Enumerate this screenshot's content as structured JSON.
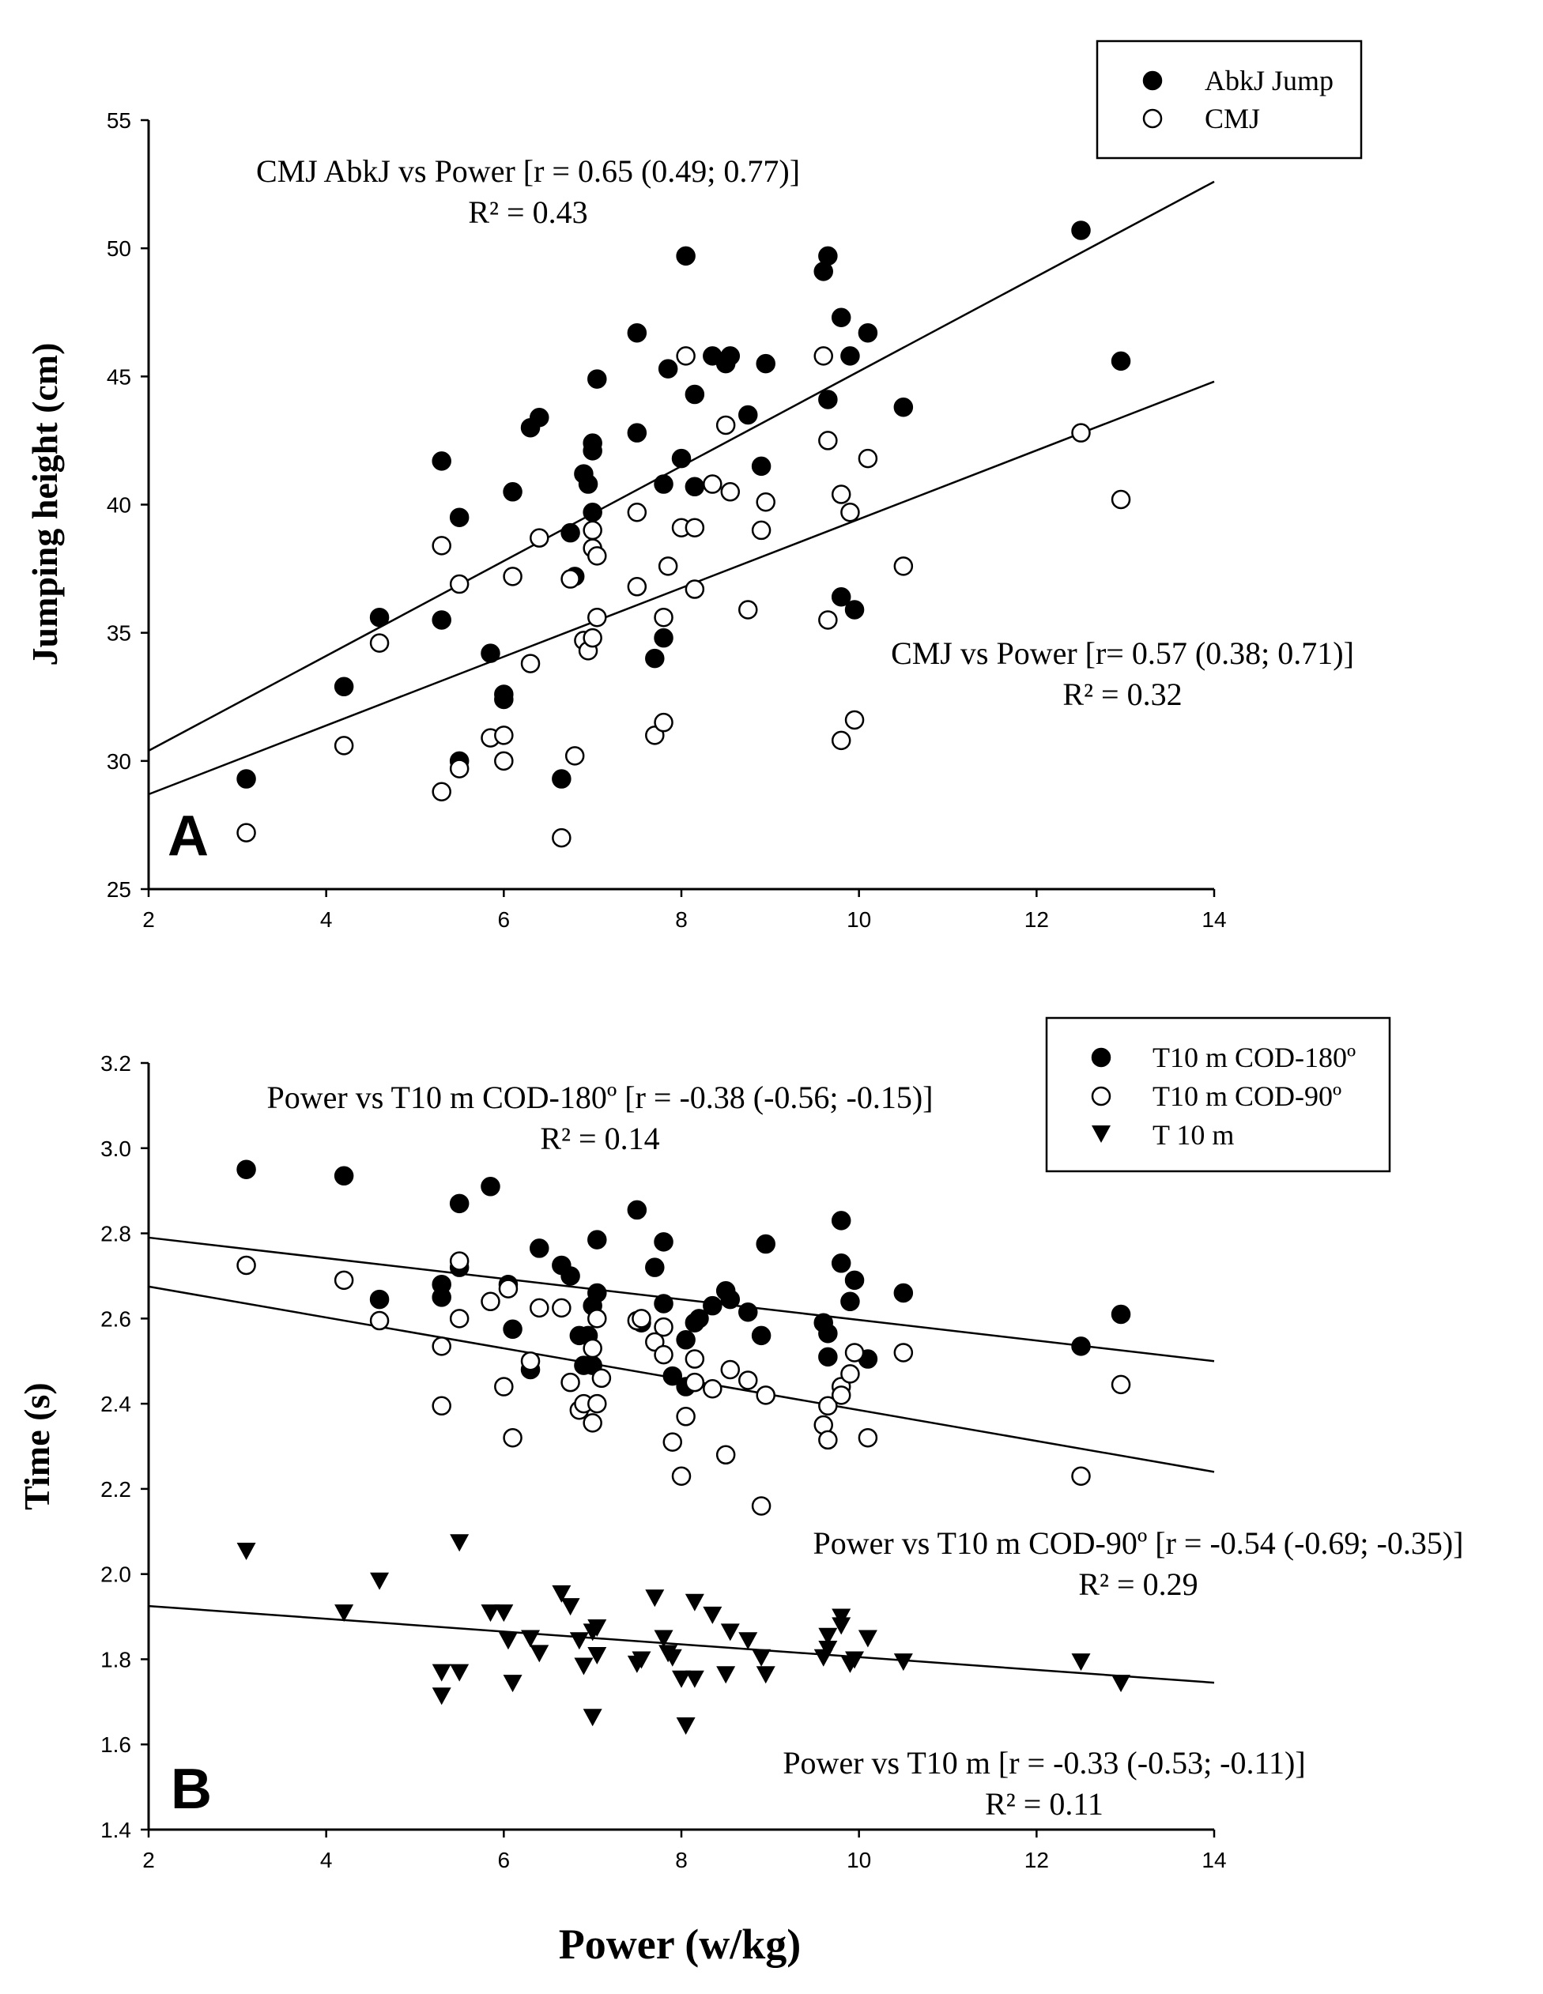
{
  "chart_data": [
    {
      "panel": "A",
      "type": "scatter",
      "xlabel": "Power (w/kg)",
      "ylabel": "Jumping height (cm)",
      "xlim": [
        2,
        14
      ],
      "ylim": [
        25,
        55
      ],
      "xticks": [
        "2",
        "4",
        "6",
        "8",
        "10",
        "12",
        "14"
      ],
      "yticks": [
        "25",
        "30",
        "35",
        "40",
        "45",
        "50",
        "55"
      ],
      "legend": [
        "AbkJ Jump",
        "CMJ"
      ],
      "annotations": [
        {
          "line1": "CMJ AbkJ vs Power [r = 0.65 (0.49; 0.77)]",
          "line2": "R² = 0.43"
        },
        {
          "line1": "CMJ vs Power [r= 0.57 (0.38; 0.71)]",
          "line2": "R² = 0.32"
        }
      ],
      "series": [
        {
          "name": "AbkJ Jump",
          "marker": "filled-circle",
          "fit": {
            "x": [
              2,
              14
            ],
            "y": [
              30.4,
              52.6
            ]
          },
          "points": [
            [
              3.1,
              29.3
            ],
            [
              4.2,
              32.9
            ],
            [
              4.6,
              35.6
            ],
            [
              5.3,
              41.7
            ],
            [
              5.3,
              35.5
            ],
            [
              5.5,
              39.5
            ],
            [
              5.5,
              30.0
            ],
            [
              5.85,
              34.2
            ],
            [
              6.0,
              32.6
            ],
            [
              6.0,
              32.4
            ],
            [
              6.1,
              40.5
            ],
            [
              6.3,
              43.0
            ],
            [
              6.4,
              43.4
            ],
            [
              6.65,
              29.3
            ],
            [
              6.75,
              38.9
            ],
            [
              6.8,
              37.2
            ],
            [
              6.9,
              41.2
            ],
            [
              6.95,
              40.8
            ],
            [
              7.0,
              42.4
            ],
            [
              7.0,
              42.1
            ],
            [
              7.0,
              39.7
            ],
            [
              7.05,
              44.9
            ],
            [
              7.5,
              46.7
            ],
            [
              7.5,
              42.8
            ],
            [
              7.7,
              34.0
            ],
            [
              7.8,
              40.8
            ],
            [
              7.8,
              34.8
            ],
            [
              7.85,
              45.3
            ],
            [
              8.0,
              41.8
            ],
            [
              8.05,
              49.7
            ],
            [
              8.15,
              44.3
            ],
            [
              8.15,
              40.7
            ],
            [
              8.35,
              45.8
            ],
            [
              8.5,
              45.5
            ],
            [
              8.55,
              45.8
            ],
            [
              8.75,
              43.5
            ],
            [
              8.9,
              41.5
            ],
            [
              8.95,
              45.5
            ],
            [
              9.6,
              49.1
            ],
            [
              9.65,
              49.7
            ],
            [
              9.65,
              44.1
            ],
            [
              9.8,
              47.3
            ],
            [
              9.8,
              36.4
            ],
            [
              9.9,
              45.8
            ],
            [
              9.95,
              35.9
            ],
            [
              10.1,
              46.7
            ],
            [
              10.5,
              43.8
            ],
            [
              12.5,
              50.7
            ],
            [
              12.95,
              45.6
            ]
          ]
        },
        {
          "name": "CMJ",
          "marker": "open-circle",
          "fit": {
            "x": [
              2,
              14
            ],
            "y": [
              28.7,
              44.8
            ]
          },
          "points": [
            [
              3.1,
              27.2
            ],
            [
              4.2,
              30.6
            ],
            [
              4.6,
              34.6
            ],
            [
              5.3,
              38.4
            ],
            [
              5.3,
              28.8
            ],
            [
              5.5,
              36.9
            ],
            [
              5.5,
              29.7
            ],
            [
              5.85,
              30.9
            ],
            [
              6.0,
              31.0
            ],
            [
              6.0,
              30.0
            ],
            [
              6.1,
              37.2
            ],
            [
              6.3,
              33.8
            ],
            [
              6.4,
              38.7
            ],
            [
              6.65,
              27.0
            ],
            [
              6.75,
              37.1
            ],
            [
              6.8,
              30.2
            ],
            [
              6.9,
              34.7
            ],
            [
              6.95,
              34.3
            ],
            [
              7.0,
              39.0
            ],
            [
              7.0,
              38.3
            ],
            [
              7.0,
              34.8
            ],
            [
              7.05,
              38.0
            ],
            [
              7.05,
              35.6
            ],
            [
              7.5,
              39.7
            ],
            [
              7.5,
              36.8
            ],
            [
              7.7,
              31.0
            ],
            [
              7.8,
              35.6
            ],
            [
              7.8,
              31.5
            ],
            [
              7.85,
              37.6
            ],
            [
              8.0,
              39.1
            ],
            [
              8.05,
              45.8
            ],
            [
              8.15,
              39.1
            ],
            [
              8.15,
              36.7
            ],
            [
              8.35,
              40.8
            ],
            [
              8.5,
              43.1
            ],
            [
              8.55,
              40.5
            ],
            [
              8.75,
              35.9
            ],
            [
              8.9,
              39.0
            ],
            [
              8.95,
              40.1
            ],
            [
              9.6,
              45.8
            ],
            [
              9.65,
              42.5
            ],
            [
              9.65,
              35.5
            ],
            [
              9.8,
              40.4
            ],
            [
              9.8,
              30.8
            ],
            [
              9.9,
              39.7
            ],
            [
              9.95,
              31.6
            ],
            [
              10.1,
              41.8
            ],
            [
              10.5,
              37.6
            ],
            [
              12.5,
              42.8
            ],
            [
              12.95,
              40.2
            ]
          ]
        }
      ]
    },
    {
      "panel": "B",
      "type": "scatter",
      "xlabel": "Power (w/kg)",
      "ylabel": "Time (s)",
      "xlim": [
        2,
        14
      ],
      "ylim": [
        1.4,
        3.2
      ],
      "xticks": [
        "2",
        "4",
        "6",
        "8",
        "10",
        "12",
        "14"
      ],
      "yticks": [
        "1.4",
        "1.6",
        "1.8",
        "2.0",
        "2.2",
        "2.4",
        "2.6",
        "2.8",
        "3.0",
        "3.2"
      ],
      "legend": [
        "T10 m COD-180º",
        "T10 m COD-90º",
        "T 10 m"
      ],
      "annotations": [
        {
          "line1": "Power vs T10 m COD-180º [r = -0.38 (-0.56; -0.15)]",
          "line2": "R² = 0.14"
        },
        {
          "line1": "Power vs T10 m COD-90º [r = -0.54 (-0.69; -0.35)]",
          "line2": "R² = 0.29"
        },
        {
          "line1": "Power vs T10 m [r = -0.33 (-0.53; -0.11)]",
          "line2": "R² = 0.11"
        }
      ],
      "series": [
        {
          "name": "T10 m COD-180º",
          "marker": "filled-circle",
          "fit": {
            "x": [
              2,
              14
            ],
            "y": [
              2.79,
              2.5
            ]
          },
          "points": [
            [
              3.1,
              2.95
            ],
            [
              4.2,
              2.935
            ],
            [
              4.6,
              2.645
            ],
            [
              5.3,
              2.68
            ],
            [
              5.3,
              2.65
            ],
            [
              5.5,
              2.87
            ],
            [
              5.5,
              2.72
            ],
            [
              5.85,
              2.91
            ],
            [
              6.05,
              2.68
            ],
            [
              6.1,
              2.575
            ],
            [
              6.3,
              2.48
            ],
            [
              6.4,
              2.765
            ],
            [
              6.65,
              2.725
            ],
            [
              6.75,
              2.7
            ],
            [
              6.85,
              2.56
            ],
            [
              6.9,
              2.49
            ],
            [
              6.95,
              2.56
            ],
            [
              7.0,
              2.63
            ],
            [
              7.0,
              2.49
            ],
            [
              7.05,
              2.785
            ],
            [
              7.05,
              2.66
            ],
            [
              7.5,
              2.855
            ],
            [
              7.55,
              2.59
            ],
            [
              7.7,
              2.72
            ],
            [
              7.8,
              2.78
            ],
            [
              7.8,
              2.635
            ],
            [
              7.9,
              2.465
            ],
            [
              8.05,
              2.55
            ],
            [
              8.05,
              2.44
            ],
            [
              8.15,
              2.59
            ],
            [
              8.2,
              2.6
            ],
            [
              8.35,
              2.63
            ],
            [
              8.5,
              2.665
            ],
            [
              8.55,
              2.645
            ],
            [
              8.75,
              2.615
            ],
            [
              8.9,
              2.56
            ],
            [
              8.95,
              2.775
            ],
            [
              9.6,
              2.59
            ],
            [
              9.65,
              2.565
            ],
            [
              9.65,
              2.51
            ],
            [
              9.8,
              2.83
            ],
            [
              9.8,
              2.73
            ],
            [
              9.9,
              2.64
            ],
            [
              9.95,
              2.69
            ],
            [
              10.1,
              2.505
            ],
            [
              10.5,
              2.66
            ],
            [
              12.5,
              2.535
            ],
            [
              12.95,
              2.61
            ]
          ]
        },
        {
          "name": "T10 m COD-90º",
          "marker": "open-circle",
          "fit": {
            "x": [
              2,
              14
            ],
            "y": [
              2.675,
              2.24
            ]
          },
          "points": [
            [
              3.1,
              2.725
            ],
            [
              4.2,
              2.69
            ],
            [
              4.6,
              2.595
            ],
            [
              5.3,
              2.535
            ],
            [
              5.3,
              2.395
            ],
            [
              5.5,
              2.735
            ],
            [
              5.5,
              2.6
            ],
            [
              5.85,
              2.64
            ],
            [
              6.0,
              2.44
            ],
            [
              6.05,
              2.67
            ],
            [
              6.1,
              2.32
            ],
            [
              6.3,
              2.5
            ],
            [
              6.4,
              2.625
            ],
            [
              6.65,
              2.625
            ],
            [
              6.75,
              2.45
            ],
            [
              6.85,
              2.385
            ],
            [
              6.9,
              2.4
            ],
            [
              7.0,
              2.53
            ],
            [
              7.0,
              2.355
            ],
            [
              7.05,
              2.4
            ],
            [
              7.05,
              2.6
            ],
            [
              7.1,
              2.46
            ],
            [
              7.5,
              2.595
            ],
            [
              7.55,
              2.6
            ],
            [
              7.7,
              2.545
            ],
            [
              7.8,
              2.58
            ],
            [
              7.8,
              2.515
            ],
            [
              7.9,
              2.31
            ],
            [
              8.0,
              2.23
            ],
            [
              8.05,
              2.37
            ],
            [
              8.15,
              2.505
            ],
            [
              8.15,
              2.45
            ],
            [
              8.35,
              2.435
            ],
            [
              8.5,
              2.28
            ],
            [
              8.55,
              2.48
            ],
            [
              8.75,
              2.455
            ],
            [
              8.9,
              2.16
            ],
            [
              8.95,
              2.42
            ],
            [
              9.6,
              2.35
            ],
            [
              9.65,
              2.395
            ],
            [
              9.65,
              2.315
            ],
            [
              9.8,
              2.44
            ],
            [
              9.8,
              2.42
            ],
            [
              9.9,
              2.47
            ],
            [
              9.95,
              2.52
            ],
            [
              10.1,
              2.32
            ],
            [
              10.5,
              2.52
            ],
            [
              12.5,
              2.23
            ],
            [
              12.95,
              2.445
            ]
          ]
        },
        {
          "name": "T 10 m",
          "marker": "filled-triangle-down",
          "fit": {
            "x": [
              2,
              14
            ],
            "y": [
              1.925,
              1.745
            ]
          },
          "points": [
            [
              3.1,
              2.055
            ],
            [
              4.2,
              1.91
            ],
            [
              4.6,
              1.985
            ],
            [
              5.3,
              1.77
            ],
            [
              5.3,
              1.715
            ],
            [
              5.5,
              2.075
            ],
            [
              5.5,
              1.77
            ],
            [
              5.85,
              1.91
            ],
            [
              6.0,
              1.91
            ],
            [
              6.05,
              1.845
            ],
            [
              6.1,
              1.745
            ],
            [
              6.3,
              1.85
            ],
            [
              6.4,
              1.815
            ],
            [
              6.65,
              1.955
            ],
            [
              6.75,
              1.925
            ],
            [
              6.85,
              1.845
            ],
            [
              6.9,
              1.785
            ],
            [
              7.0,
              1.865
            ],
            [
              7.0,
              1.665
            ],
            [
              7.05,
              1.875
            ],
            [
              7.05,
              1.81
            ],
            [
              7.5,
              1.79
            ],
            [
              7.55,
              1.8
            ],
            [
              7.7,
              1.945
            ],
            [
              7.8,
              1.85
            ],
            [
              7.85,
              1.815
            ],
            [
              7.9,
              1.805
            ],
            [
              8.0,
              1.755
            ],
            [
              8.05,
              1.645
            ],
            [
              8.15,
              1.935
            ],
            [
              8.15,
              1.755
            ],
            [
              8.35,
              1.905
            ],
            [
              8.5,
              1.765
            ],
            [
              8.55,
              1.865
            ],
            [
              8.75,
              1.845
            ],
            [
              8.9,
              1.805
            ],
            [
              8.95,
              1.765
            ],
            [
              9.6,
              1.805
            ],
            [
              9.65,
              1.855
            ],
            [
              9.65,
              1.825
            ],
            [
              9.8,
              1.9
            ],
            [
              9.8,
              1.88
            ],
            [
              9.9,
              1.79
            ],
            [
              9.95,
              1.8
            ],
            [
              10.1,
              1.85
            ],
            [
              10.5,
              1.795
            ],
            [
              12.5,
              1.795
            ],
            [
              12.95,
              1.745
            ]
          ]
        }
      ]
    }
  ]
}
